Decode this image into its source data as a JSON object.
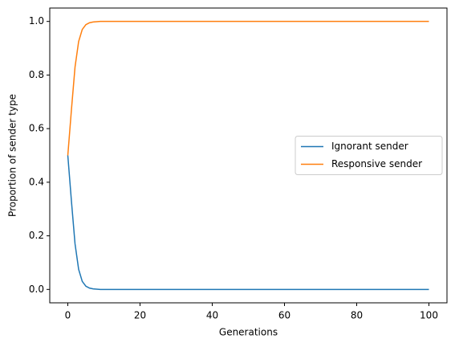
{
  "chart_data": {
    "type": "line",
    "xlabel": "Generations",
    "ylabel": "Proportion of sender type",
    "x": [
      0,
      1,
      2,
      3,
      4,
      5,
      6,
      7,
      8,
      9,
      10,
      20,
      30,
      40,
      50,
      60,
      70,
      80,
      90,
      100
    ],
    "series": [
      {
        "name": "Ignorant sender",
        "color": "#1f77b4",
        "values": [
          0.5,
          0.33,
          0.17,
          0.075,
          0.03,
          0.012,
          0.005,
          0.002,
          0.001,
          0,
          0,
          0,
          0,
          0,
          0,
          0,
          0,
          0,
          0,
          0
        ]
      },
      {
        "name": "Responsive sender",
        "color": "#ff7f0e",
        "values": [
          0.5,
          0.67,
          0.83,
          0.925,
          0.97,
          0.988,
          0.995,
          0.998,
          0.999,
          1,
          1,
          1,
          1,
          1,
          1,
          1,
          1,
          1,
          1,
          1
        ]
      }
    ],
    "xlim": [
      -5,
      105
    ],
    "xticks": [
      0,
      20,
      40,
      60,
      80,
      100
    ],
    "ylim": [
      -0.05,
      1.05
    ],
    "yticks": [
      {
        "value": 0,
        "label": "0.0"
      },
      {
        "value": 0.2,
        "label": "0.2"
      },
      {
        "value": 0.4,
        "label": "0.4"
      },
      {
        "value": 0.6,
        "label": "0.6"
      },
      {
        "value": 0.8,
        "label": "0.8"
      },
      {
        "value": 1,
        "label": "1.0"
      }
    ],
    "legend": "center right"
  }
}
